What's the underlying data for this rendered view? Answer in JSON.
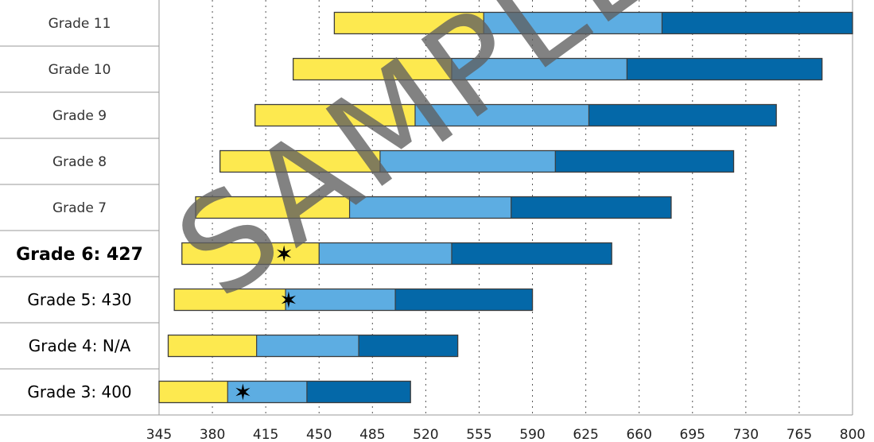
{
  "chart_data": {
    "type": "bar",
    "orientation": "horizontal",
    "stacked": true,
    "xlim": [
      345,
      800
    ],
    "x_ticks": [
      "345",
      "380",
      "415",
      "450",
      "485",
      "520",
      "555",
      "590",
      "625",
      "660",
      "695",
      "730",
      "765",
      "800"
    ],
    "grid": "vertical dotted",
    "watermark": "SAMPLE",
    "colors": {
      "seg1": "#fde94f",
      "seg2": "#5dade2",
      "seg3": "#0468a8",
      "border": "#3c3c3c",
      "grid": "#555555",
      "marker": "#000000"
    },
    "rows": [
      {
        "label": "Grade 11",
        "emphasis": "normal",
        "start": 460,
        "b1": 558,
        "b2": 675,
        "end": 800,
        "score": null
      },
      {
        "label": "Grade 10",
        "emphasis": "normal",
        "start": 433,
        "b1": 537,
        "b2": 652,
        "end": 780,
        "score": null
      },
      {
        "label": "Grade 9",
        "emphasis": "normal",
        "start": 408,
        "b1": 513,
        "b2": 627,
        "end": 750,
        "score": null
      },
      {
        "label": "Grade 8",
        "emphasis": "normal",
        "start": 385,
        "b1": 490,
        "b2": 605,
        "end": 722,
        "score": null
      },
      {
        "label": "Grade 7",
        "emphasis": "normal",
        "start": 369,
        "b1": 470,
        "b2": 576,
        "end": 681,
        "score": null
      },
      {
        "label": "Grade 6: 427",
        "emphasis": "bold",
        "start": 360,
        "b1": 450,
        "b2": 537,
        "end": 642,
        "score": 427
      },
      {
        "label": "Grade 5: 430",
        "emphasis": "strong",
        "start": 355,
        "b1": 428,
        "b2": 500,
        "end": 590,
        "score": 430
      },
      {
        "label": "Grade 4: N/A",
        "emphasis": "strong",
        "start": 351,
        "b1": 409,
        "b2": 476,
        "end": 541,
        "score": null
      },
      {
        "label": "Grade 3: 400",
        "emphasis": "strong",
        "start": 345,
        "b1": 390,
        "b2": 442,
        "end": 510,
        "score": 400
      }
    ]
  }
}
